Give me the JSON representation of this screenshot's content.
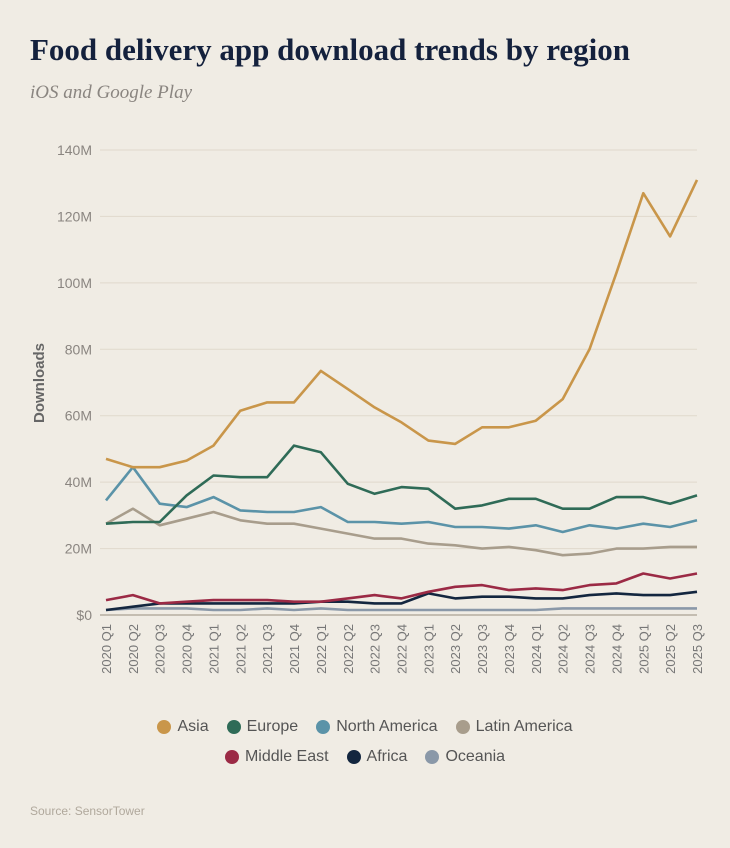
{
  "title": "Food delivery app download trends by region",
  "subtitle": "iOS and Google Play",
  "source": "Source: SensorTower",
  "chart_data": {
    "type": "line",
    "title": "Food delivery app download trends by region",
    "ylabel": "Downloads",
    "xlabel": "",
    "ylim": [
      0,
      140
    ],
    "yticks": [
      0,
      20,
      40,
      60,
      80,
      100,
      120,
      140
    ],
    "ytick_labels": [
      "$0",
      "20M",
      "40M",
      "60M",
      "80M",
      "100M",
      "120M",
      "140M"
    ],
    "grid": true,
    "legend_position": "bottom",
    "x": [
      "2020 Q1",
      "2020 Q2",
      "2020 Q3",
      "2020 Q4",
      "2021 Q1",
      "2021 Q2",
      "2021 Q3",
      "2021 Q4",
      "2022 Q1",
      "2022 Q2",
      "2022 Q3",
      "2022 Q4",
      "2023 Q1",
      "2023 Q2",
      "2023 Q3",
      "2023 Q4",
      "2024 Q1",
      "2024 Q2",
      "2024 Q3",
      "2024 Q4",
      "2025 Q1",
      "2025 Q2",
      "2025 Q3"
    ],
    "series": [
      {
        "name": "Asia",
        "color": "#c9964a",
        "values": [
          47,
          44.5,
          44.5,
          46.5,
          51,
          61.5,
          64,
          64,
          73.5,
          68,
          62.5,
          58,
          52.5,
          51.5,
          56.5,
          56.5,
          58.5,
          65,
          80,
          103,
          127,
          114,
          131
        ]
      },
      {
        "name": "Europe",
        "color": "#2f6b57",
        "values": [
          27.5,
          28,
          28,
          36,
          42,
          41.5,
          41.5,
          51,
          49,
          39.5,
          36.5,
          38.5,
          38,
          32,
          33,
          35,
          35,
          32,
          32,
          35.5,
          35.5,
          33.5,
          36
        ]
      },
      {
        "name": "North America",
        "color": "#5b93a8",
        "values": [
          34.5,
          44.5,
          33.5,
          32.5,
          35.5,
          31.5,
          31,
          31,
          32.5,
          28,
          28,
          27.5,
          28,
          26.5,
          26.5,
          26,
          27,
          25,
          27,
          26,
          27.5,
          26.5,
          28.5
        ]
      },
      {
        "name": "Latin America",
        "color": "#a89d8c",
        "values": [
          27.5,
          32,
          27,
          29,
          31,
          28.5,
          27.5,
          27.5,
          26,
          24.5,
          23,
          23,
          21.5,
          21,
          20,
          20.5,
          19.5,
          18,
          18.5,
          20,
          20,
          20.5,
          20.5
        ]
      },
      {
        "name": "Middle East",
        "color": "#9b2a45",
        "values": [
          4.5,
          6,
          3.5,
          4,
          4.5,
          4.5,
          4.5,
          4,
          4,
          5,
          6,
          5,
          7,
          8.5,
          9,
          7.5,
          8,
          7.5,
          9,
          9.5,
          12.5,
          11,
          12.5
        ]
      },
      {
        "name": "Africa",
        "color": "#13263f",
        "values": [
          1.5,
          2.5,
          3.5,
          3.5,
          3.5,
          3.5,
          3.5,
          3.5,
          4,
          4,
          3.5,
          3.5,
          6.5,
          5,
          5.5,
          5.5,
          5,
          5,
          6,
          6.5,
          6,
          6,
          7
        ]
      },
      {
        "name": "Oceania",
        "color": "#8a98a8",
        "values": [
          1.5,
          2,
          2,
          2,
          1.5,
          1.5,
          2,
          1.5,
          2,
          1.5,
          1.5,
          1.5,
          1.5,
          1.5,
          1.5,
          1.5,
          1.5,
          2,
          2,
          2,
          2,
          2,
          2
        ]
      }
    ]
  }
}
